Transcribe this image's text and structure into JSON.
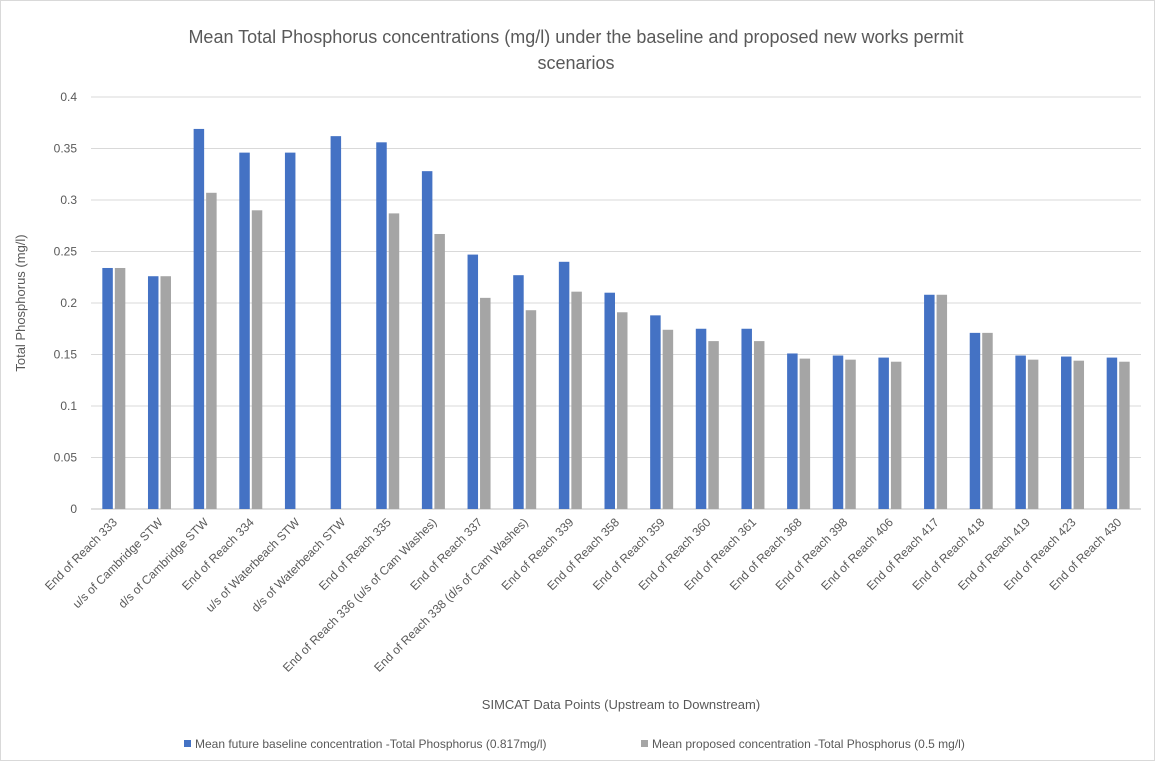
{
  "chart_data": {
    "type": "bar",
    "title": "Mean Total Phosphorus concentrations (mg/l) under the baseline and proposed new works permit scenarios",
    "title_lines": [
      "Mean Total Phosphorus concentrations (mg/l) under the baseline and proposed new works permit",
      "scenarios"
    ],
    "xlabel": "SIMCAT Data Points (Upstream to Downstream)",
    "ylabel": "Total Phosphorus (mg/l)",
    "ylim": [
      0,
      0.4
    ],
    "yticks": [
      "0",
      "0.05",
      "0.1",
      "0.15",
      "0.2",
      "0.25",
      "0.3",
      "0.35",
      "0.4"
    ],
    "grid": true,
    "legend_position": "bottom",
    "categories": [
      "End of Reach 333",
      "u/s of Cambridge STW",
      "d/s of Cambridge STW",
      "End of Reach 334",
      "u/s of Waterbeach STW",
      "d/s of Waterbeach STW",
      "End of Reach 335",
      "End of Reach 336 (u/s of Cam Washes)",
      "End of Reach 337",
      "End of Reach 338 (d/s of Cam Washes)",
      "End of Reach 339",
      "End of Reach 358",
      "End of Reach 359",
      "End of Reach 360",
      "End of Reach 361",
      "End of Reach 368",
      "End of Reach 398",
      "End of Reach 406",
      "End of Reach 417",
      "End of Reach 418",
      "End of Reach 419",
      "End of Reach 423",
      "End of Reach 430"
    ],
    "series": [
      {
        "name": "Mean future baseline concentration -Total Phosphorus (0.817mg/l)",
        "color": "#4472c4",
        "values": [
          0.234,
          0.226,
          0.369,
          0.346,
          0.346,
          0.362,
          0.356,
          0.328,
          0.247,
          0.227,
          0.24,
          0.21,
          0.188,
          0.175,
          0.175,
          0.151,
          0.149,
          0.147,
          0.208,
          0.171,
          0.149,
          0.148,
          0.147
        ]
      },
      {
        "name": "Mean proposed concentration -Total Phosphorus (0.5 mg/l)",
        "color": "#a5a5a5",
        "values": [
          0.234,
          0.226,
          0.307,
          0.29,
          null,
          null,
          0.287,
          0.267,
          0.205,
          0.193,
          0.211,
          0.191,
          0.174,
          0.163,
          0.163,
          0.146,
          0.145,
          0.143,
          0.208,
          0.171,
          0.145,
          0.144,
          0.143
        ]
      }
    ]
  }
}
